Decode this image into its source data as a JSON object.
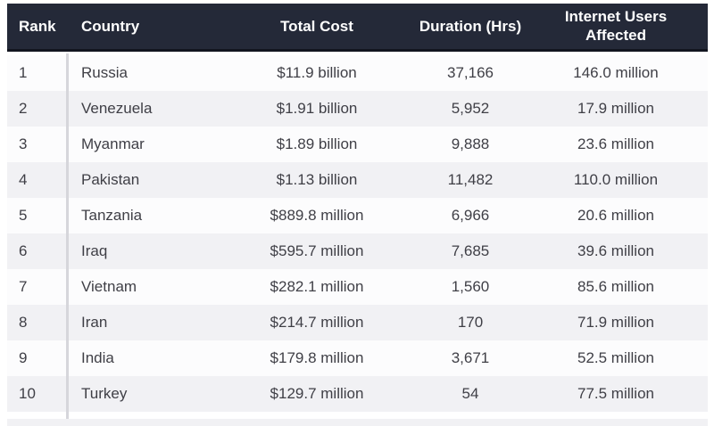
{
  "table": {
    "columns": {
      "rank": "Rank",
      "country": "Country",
      "total_cost": "Total Cost",
      "duration_hrs": "Duration (Hrs)",
      "internet_users_affected": "Internet Users Affected"
    },
    "rows": [
      {
        "rank": "1",
        "country": "Russia",
        "total_cost": "$11.9 billion",
        "duration_hrs": "37,166",
        "internet_users_affected": "146.0 million"
      },
      {
        "rank": "2",
        "country": "Venezuela",
        "total_cost": "$1.91 billion",
        "duration_hrs": "5,952",
        "internet_users_affected": "17.9 million"
      },
      {
        "rank": "3",
        "country": "Myanmar",
        "total_cost": "$1.89 billion",
        "duration_hrs": "9,888",
        "internet_users_affected": "23.6 million"
      },
      {
        "rank": "4",
        "country": "Pakistan",
        "total_cost": "$1.13 billion",
        "duration_hrs": "11,482",
        "internet_users_affected": "110.0 million"
      },
      {
        "rank": "5",
        "country": "Tanzania",
        "total_cost": "$889.8 million",
        "duration_hrs": "6,966",
        "internet_users_affected": "20.6 million"
      },
      {
        "rank": "6",
        "country": "Iraq",
        "total_cost": "$595.7 million",
        "duration_hrs": "7,685",
        "internet_users_affected": "39.6 million"
      },
      {
        "rank": "7",
        "country": "Vietnam",
        "total_cost": "$282.1 million",
        "duration_hrs": "1,560",
        "internet_users_affected": "85.6 million"
      },
      {
        "rank": "8",
        "country": "Iran",
        "total_cost": "$214.7 million",
        "duration_hrs": "170",
        "internet_users_affected": "71.9 million"
      },
      {
        "rank": "9",
        "country": "India",
        "total_cost": "$179.8 million",
        "duration_hrs": "3,671",
        "internet_users_affected": "52.5 million"
      },
      {
        "rank": "10",
        "country": "Turkey",
        "total_cost": "$129.7 million",
        "duration_hrs": "54",
        "internet_users_affected": "77.5 million"
      }
    ]
  },
  "colors": {
    "header_bg": "#242938",
    "header_border": "#12151f",
    "header_text": "#ffffff",
    "row_odd_bg": "#fcfcfd",
    "row_even_bg": "#f1f1f4",
    "row_text": "#3f3f46",
    "divider": "#d6d6db",
    "page_bg": "#ffffff"
  }
}
